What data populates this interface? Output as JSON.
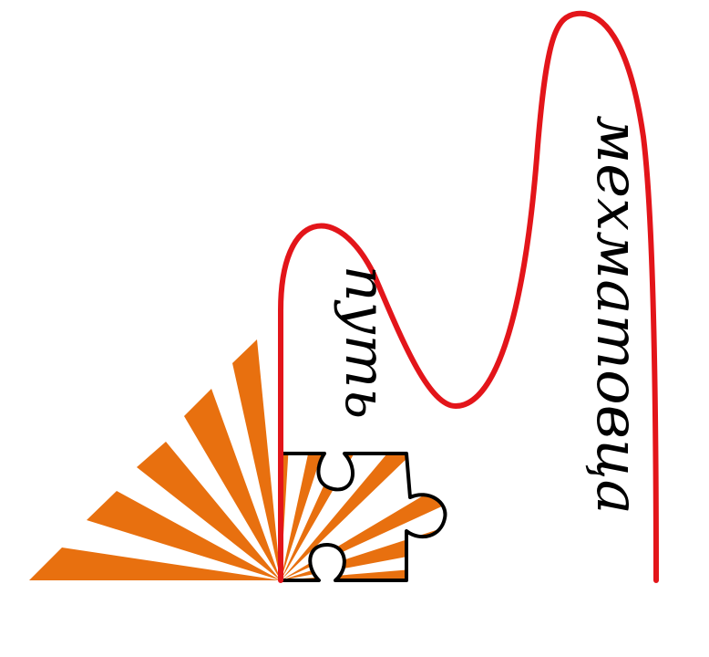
{
  "logo": {
    "word_left": "путь",
    "word_right": "мехматовца"
  },
  "colors": {
    "curve": "#e3151a",
    "rays": "#e8700f",
    "outline": "#000000",
    "background": "#ffffff"
  }
}
